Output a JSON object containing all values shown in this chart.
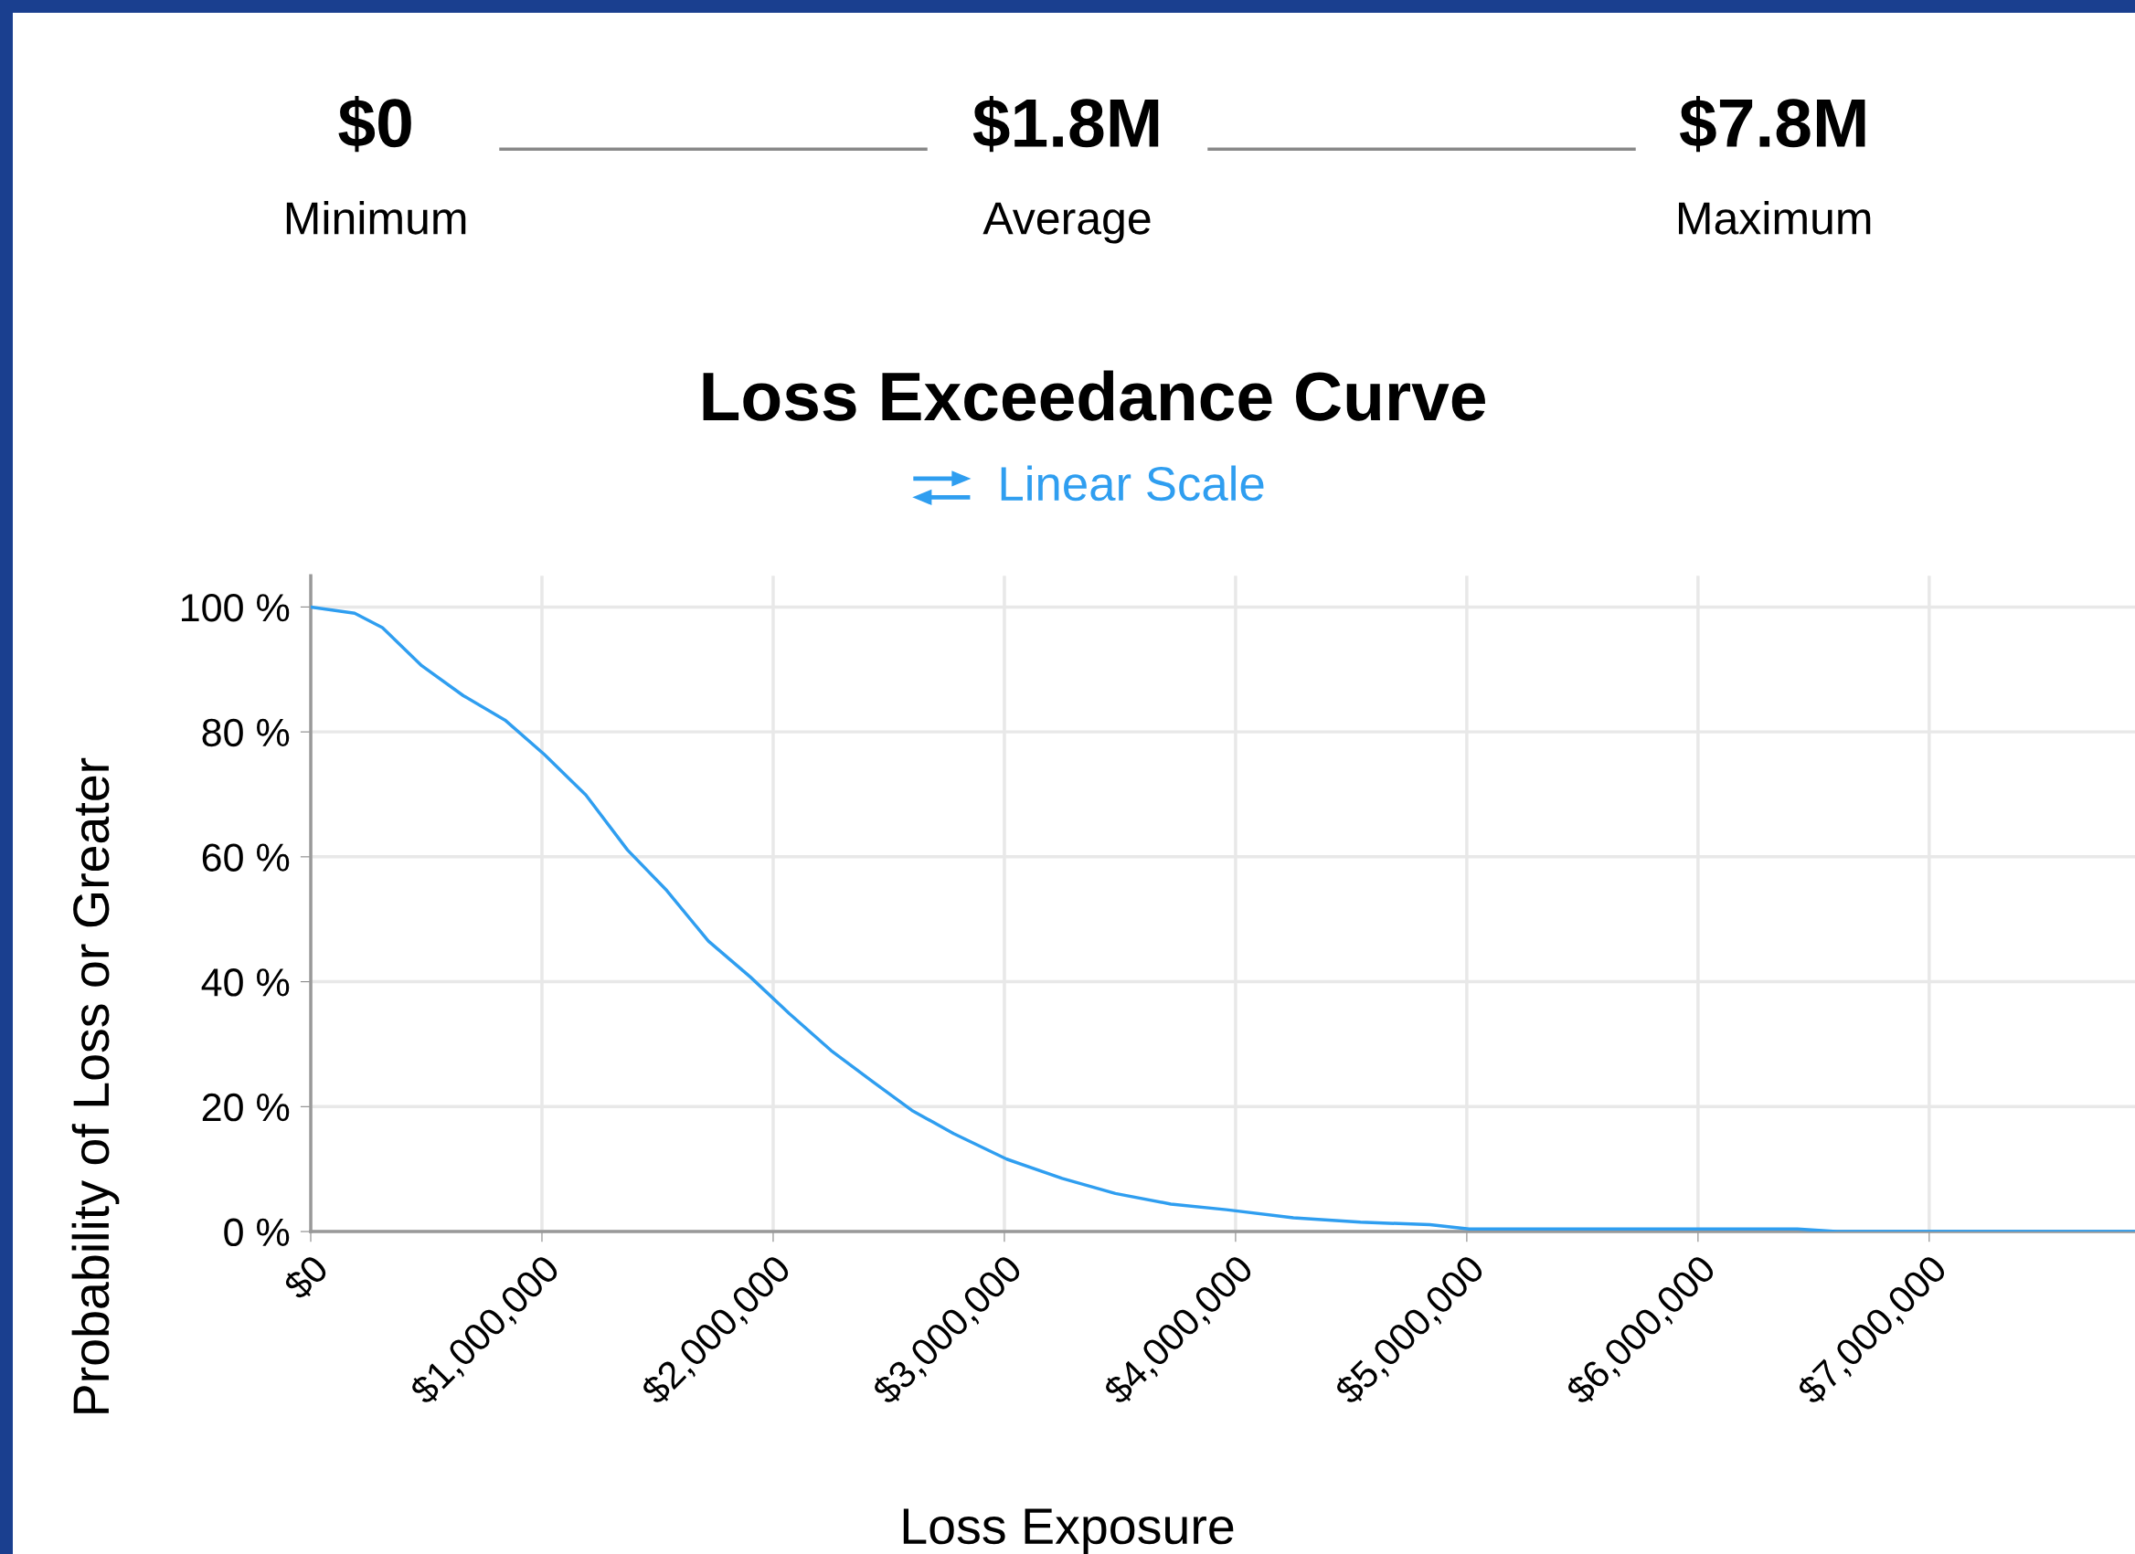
{
  "chart_data": {
    "type": "line",
    "title": "Loss Exceedance Curve",
    "subtitle": "Linear Scale",
    "xlabel": "Loss Exposure",
    "ylabel": "Probability of Loss or Greater",
    "annotations": [
      "$0",
      "Minimum",
      "$1.8M",
      "Average",
      "$7.8M",
      "Maximum"
    ],
    "series": [
      {
        "color": "#2f9ef0",
        "x": [
          0,
          190000,
          310000,
          480000,
          660000,
          840000,
          1010000,
          1190000,
          1370000,
          1540000,
          1720000,
          1900000,
          2070000,
          2250000,
          2430000,
          2600000,
          2780000,
          3010000,
          3250000,
          3480000,
          3720000,
          3960000,
          4250000,
          4540000,
          4840000,
          5010000,
          5720000,
          6430000,
          6600000,
          7890000
        ],
        "values": [
          100,
          99,
          96.7,
          90.6,
          85.8,
          81.9,
          76.4,
          69.9,
          61.1,
          54.6,
          46.5,
          40.8,
          34.9,
          29.0,
          24.0,
          19.4,
          15.7,
          11.6,
          8.5,
          6.1,
          4.4,
          3.5,
          2.2,
          1.5,
          1.1,
          0.4,
          0.4,
          0.4,
          0,
          0
        ]
      }
    ],
    "xlim": [
      0,
      7890000
    ],
    "ylim": [
      0,
      105
    ],
    "xticks": [
      {
        "value": 0,
        "label": "$0"
      },
      {
        "value": 1000000,
        "label": "$1,000,000"
      },
      {
        "value": 2000000,
        "label": "$2,000,000"
      },
      {
        "value": 3000000,
        "label": "$3,000,000"
      },
      {
        "value": 4000000,
        "label": "$4,000,000"
      },
      {
        "value": 5000000,
        "label": "$5,000,000"
      },
      {
        "value": 6000000,
        "label": "$6,000,000"
      },
      {
        "value": 7000000,
        "label": "$7,000,000"
      }
    ],
    "yticks": [
      {
        "value": 0,
        "label": "0 %"
      },
      {
        "value": 20,
        "label": "20 %"
      },
      {
        "value": 40,
        "label": "40 %"
      },
      {
        "value": 60,
        "label": "60 %"
      },
      {
        "value": 80,
        "label": "80 %"
      },
      {
        "value": 100,
        "label": "100 %"
      }
    ],
    "grid": true,
    "legend": false,
    "marker": "none",
    "line_style": "solid"
  }
}
